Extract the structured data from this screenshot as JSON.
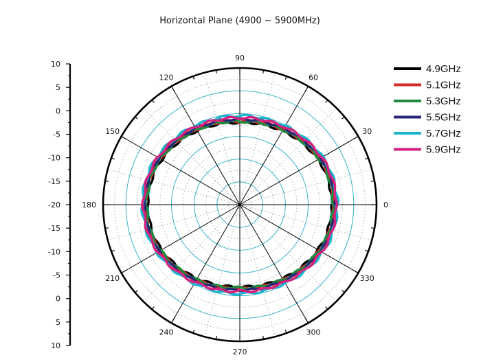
{
  "chart_data": {
    "type": "polar-line",
    "title": "Horizontal Plane (4900 ~ 5900MHz)",
    "angle_unit": "deg",
    "angle_ticks": [
      0,
      30,
      60,
      90,
      120,
      150,
      180,
      210,
      240,
      270,
      300,
      330
    ],
    "radial_axis": {
      "min": -20,
      "max": 10,
      "tick_labels": [
        "10",
        "5",
        "0",
        "-5",
        "-10",
        "-15",
        "-20",
        "-15",
        "-10",
        "-5",
        "0",
        "5",
        "10"
      ]
    },
    "grid": true,
    "legend_position": "top-right",
    "series": [
      {
        "name": "4.9GHz",
        "color": "#000000",
        "gain": [
          0.3,
          0.1,
          -0.7,
          -1.5,
          -2.0,
          -1.5,
          -0.7,
          0.1,
          0.3,
          0.1,
          -0.7,
          -1.5,
          -2.0,
          -1.5,
          -0.7,
          0.1
        ]
      },
      {
        "name": "5.1GHz",
        "color": "#d42a2a",
        "gain": [
          0.7,
          0.5,
          -0.4,
          -1.2,
          -1.7,
          -1.2,
          -0.4,
          0.5,
          0.7,
          0.5,
          -0.4,
          -1.2,
          -1.7,
          -1.2,
          -0.4,
          0.5
        ]
      },
      {
        "name": "5.3GHz",
        "color": "#1e8a3e",
        "gain": [
          0.5,
          0.4,
          -0.5,
          -1.3,
          -1.8,
          -1.3,
          -0.5,
          0.4,
          0.5,
          0.4,
          -0.5,
          -1.3,
          -1.8,
          -1.3,
          -0.5,
          0.4
        ]
      },
      {
        "name": "5.5GHz",
        "color": "#28287a",
        "gain": [
          1.0,
          0.8,
          -0.1,
          -0.9,
          -1.3,
          -0.9,
          -0.1,
          0.8,
          1.0,
          0.8,
          -0.1,
          -0.9,
          -1.3,
          -0.9,
          -0.1,
          0.8
        ]
      },
      {
        "name": "5.7GHz",
        "color": "#1fb3cc",
        "gain": [
          1.4,
          1.2,
          0.4,
          -0.3,
          -0.5,
          -0.3,
          0.4,
          1.2,
          1.4,
          1.2,
          0.4,
          -0.3,
          -0.5,
          -0.3,
          0.4,
          1.2
        ]
      },
      {
        "name": "5.9GHz",
        "color": "#d4217e",
        "gain": [
          1.2,
          1.0,
          0.2,
          -0.6,
          -1.0,
          -0.6,
          0.2,
          1.0,
          1.2,
          1.0,
          0.2,
          -0.6,
          -1.0,
          -0.6,
          0.2,
          1.0
        ]
      }
    ]
  }
}
